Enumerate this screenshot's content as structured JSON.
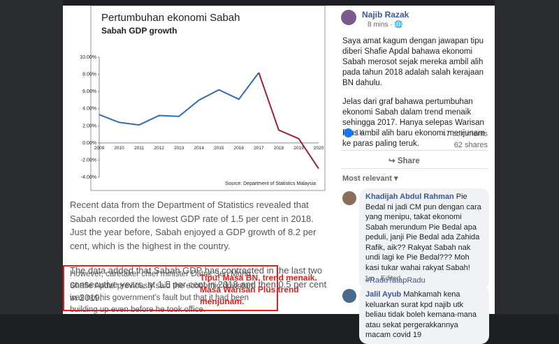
{
  "article_image": {
    "chart": {
      "type": "line",
      "title": "Pertumbuhan ekonomi Sabah",
      "subtitle": "Sabah GDP growth",
      "source": "Source: Department of Statistics Malaysia",
      "x": [
        2009,
        2010,
        2011,
        2012,
        2013,
        2014,
        2015,
        2016,
        2017,
        2018,
        2019,
        2020
      ],
      "series": [
        {
          "color": "#2f6db5",
          "values": [
            3.3,
            2.4,
            2.1,
            3.2,
            3.1,
            5.0,
            6.2,
            5.1,
            8.2,
            null,
            null,
            null
          ]
        },
        {
          "color": "#9b2335",
          "values": [
            null,
            null,
            null,
            null,
            null,
            null,
            null,
            null,
            8.2,
            1.5,
            0.5,
            -3.0
          ]
        }
      ],
      "ylim": [
        -4,
        10
      ],
      "yticks": [
        {
          "value": 10,
          "label": "10.00%"
        },
        {
          "value": 8,
          "label": "8.00%"
        },
        {
          "value": 6,
          "label": "6.00%"
        },
        {
          "value": 4,
          "label": "4.00%"
        },
        {
          "value": 2,
          "label": "2.00%"
        },
        {
          "value": 0,
          "label": "0.00%"
        },
        {
          "value": -2,
          "label": "-2.00%"
        },
        {
          "value": -4,
          "label": "-4.00%"
        }
      ]
    },
    "paragraphs": [
      "Recent data from the Department of Statistics revealed that Sabah recorded the lowest GDP rate of 1.5 per cent in 2018. Just the year before, Sabah enjoyed a GDP growth of 8.2 per cent, which is the highest in the country.",
      "The data added that Sabah GDP has contracted in the last two consecutive years, at 1.5 per cent in 2018 and then 0.5 per cent in 2019."
    ],
    "highlight": "However, caretaker chief minister Datuk Seri Mohd Shafie Apdal previously said the economic downturn was not his government's fault but that it had been building up even before he took office.",
    "annotation": "Tipu! Masa BN, trend menaik. Masa Warisan Plus trend menjunam."
  },
  "post": {
    "author": "Najib Razak",
    "time": "8 mins · ",
    "paragraphs": [
      "Saya amat kagum dengan jawapan tipu diberi Shafie Apdal bahawa ekonomi Sabah merosot sejak mereka ambil alih pada tahun 2018 adalah salah kerajaan BN dahulu.",
      "Jelas dari graf bahawa pertumbuhan ekonomi Sabah dalam trend menaik sehingga 2017. Hanya selepas Warisan Plus ambil alih baru ekonomi menjunam ke paras paling teruk."
    ],
    "reactions": "1K",
    "comments_count": "47 comments",
    "shares_count": "62 shares",
    "share": "Share",
    "sort": "Most relevant ▾",
    "comments": [
      {
        "name": "Khadijah Abdul Rahman",
        "text": "Pie Bedal ni jadi CM pun dengan cara yang menipu, takat ekonomi Sabah merundum Pie Bedal apa peduli, janji Pie Bedal ada Zahida Rafik, aik?? Rakyat Sabah nak undi lagi ke Pie Bedal??? Moh kasi tukar wahai rakyat Sabah!",
        "tag": "#RaduTatapRadu",
        "meta": "1m · Edited"
      },
      {
        "name": "Jalil Ayub",
        "text": "Mahkamah kena keluarkan surat kpd najib utk beliau tidak boleh kemana-mana atau sekat pergerakkannya macam covid 19"
      }
    ]
  }
}
